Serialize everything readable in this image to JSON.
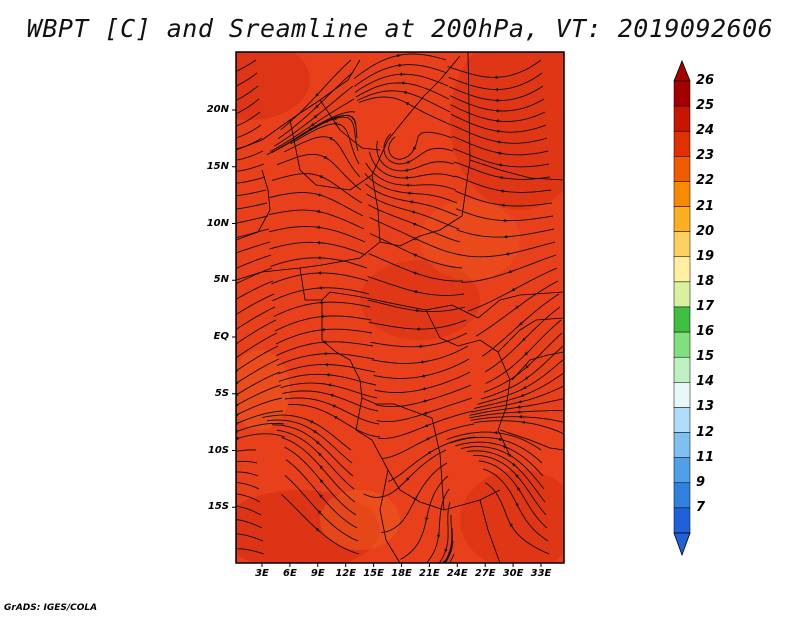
{
  "title": "WBPT [C] and Sreamline at 200hPa, VT: 2019092606",
  "credit": "GrADS: IGES/COLA",
  "map": {
    "lat_labels": [
      "20N",
      "15N",
      "10N",
      "5N",
      "EQ",
      "5S",
      "10S",
      "15S"
    ],
    "lon_labels": [
      "3E",
      "6E",
      "9E",
      "12E",
      "15E",
      "18E",
      "21E",
      "24E",
      "27E",
      "30E",
      "33E"
    ],
    "fill_color": "#e8401a",
    "warm_color": "#d42a12",
    "cool_color": "#f06020"
  },
  "colorbar": {
    "levels": [
      "26",
      "25",
      "24",
      "23",
      "22",
      "21",
      "20",
      "19",
      "18",
      "17",
      "16",
      "15",
      "14",
      "13",
      "12",
      "11",
      "9",
      "7"
    ],
    "colors": [
      "#a50000",
      "#c81400",
      "#e03000",
      "#f05a00",
      "#f88a00",
      "#fcb020",
      "#fdd060",
      "#fef0a0",
      "#d8f0a0",
      "#40c040",
      "#80e080",
      "#c0f0c0",
      "#e8f8f8",
      "#b0dcf8",
      "#80c0f0",
      "#50a0e8",
      "#3080e0",
      "#2060d8"
    ]
  }
}
